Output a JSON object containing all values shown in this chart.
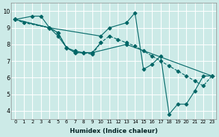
{
  "bg_color": "#cceae7",
  "grid_color": "#ffffff",
  "line_color": "#006666",
  "xlabel": "Humidex (Indice chaleur)",
  "xlim": [
    -0.5,
    23.5
  ],
  "ylim": [
    3.5,
    10.5
  ],
  "xticks": [
    0,
    1,
    2,
    3,
    4,
    5,
    6,
    7,
    8,
    9,
    10,
    11,
    12,
    13,
    14,
    15,
    16,
    17,
    18,
    19,
    20,
    21,
    22,
    23
  ],
  "yticks": [
    4,
    5,
    6,
    7,
    8,
    9,
    10
  ],
  "lines": [
    {
      "x": [
        0,
        1,
        4,
        5,
        6,
        7,
        8,
        9,
        10,
        11,
        12,
        13,
        14,
        15,
        16,
        17,
        18,
        19,
        20,
        21,
        22,
        23
      ],
      "y": [
        9.5,
        9.3,
        9.0,
        8.7,
        7.8,
        7.5,
        7.5,
        7.4,
        8.1,
        8.5,
        8.3,
        8.1,
        7.9,
        7.6,
        7.3,
        7.0,
        6.7,
        6.4,
        6.1,
        5.8,
        5.5,
        6.1
      ],
      "style": "--",
      "marker": "D",
      "markersize": 2.5
    },
    {
      "x": [
        0,
        2,
        3,
        4,
        10,
        11,
        13,
        14,
        15,
        16,
        17,
        18,
        19,
        20,
        21,
        22,
        23
      ],
      "y": [
        9.5,
        9.7,
        9.7,
        9.0,
        8.5,
        9.0,
        9.3,
        9.9,
        6.5,
        6.8,
        7.3,
        3.8,
        4.4,
        4.4,
        5.2,
        6.1,
        6.1
      ],
      "style": "-",
      "marker": "D",
      "markersize": 2.5
    },
    {
      "x": [
        0,
        4,
        5,
        6,
        7,
        8,
        9,
        10
      ],
      "y": [
        9.5,
        9.0,
        8.7,
        7.8,
        7.6,
        7.5,
        7.5,
        8.1
      ],
      "style": "-",
      "marker": "D",
      "markersize": 2.5
    },
    {
      "x": [
        0,
        4,
        5,
        6,
        7,
        8,
        9,
        13,
        23
      ],
      "y": [
        9.5,
        9.0,
        8.5,
        7.8,
        7.5,
        7.5,
        7.5,
        8.0,
        6.1
      ],
      "style": "-",
      "marker": "D",
      "markersize": 2.5
    }
  ]
}
